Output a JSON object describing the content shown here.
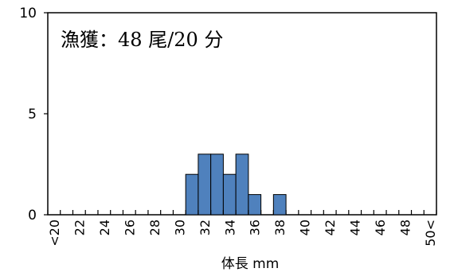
{
  "chart_data": {
    "type": "bar",
    "title": "",
    "annotation": "漁獲：48 尾/20 分",
    "xlabel": "体長 mm",
    "ylabel": "",
    "ylim": [
      0,
      10
    ],
    "y_ticks": [
      0,
      5,
      10
    ],
    "x_range": [
      20,
      50
    ],
    "x_tick_labels": [
      {
        "x": 20,
        "label": "<20"
      },
      {
        "x": 22,
        "label": "22"
      },
      {
        "x": 24,
        "label": "24"
      },
      {
        "x": 26,
        "label": "26"
      },
      {
        "x": 28,
        "label": "28"
      },
      {
        "x": 30,
        "label": "30"
      },
      {
        "x": 32,
        "label": "32"
      },
      {
        "x": 34,
        "label": "34"
      },
      {
        "x": 36,
        "label": "36"
      },
      {
        "x": 38,
        "label": "38"
      },
      {
        "x": 40,
        "label": "40"
      },
      {
        "x": 42,
        "label": "42"
      },
      {
        "x": 44,
        "label": "44"
      },
      {
        "x": 46,
        "label": "46"
      },
      {
        "x": 48,
        "label": "48"
      },
      {
        "x": 50,
        "label": "50<"
      }
    ],
    "bars": [
      {
        "x": 31,
        "value": 2
      },
      {
        "x": 32,
        "value": 3
      },
      {
        "x": 33,
        "value": 3
      },
      {
        "x": 34,
        "value": 2
      },
      {
        "x": 35,
        "value": 3
      },
      {
        "x": 36,
        "value": 1
      },
      {
        "x": 38,
        "value": 1
      }
    ],
    "bar_color": "#4f81bd",
    "bar_edge_color": "#000000",
    "grid": false
  }
}
